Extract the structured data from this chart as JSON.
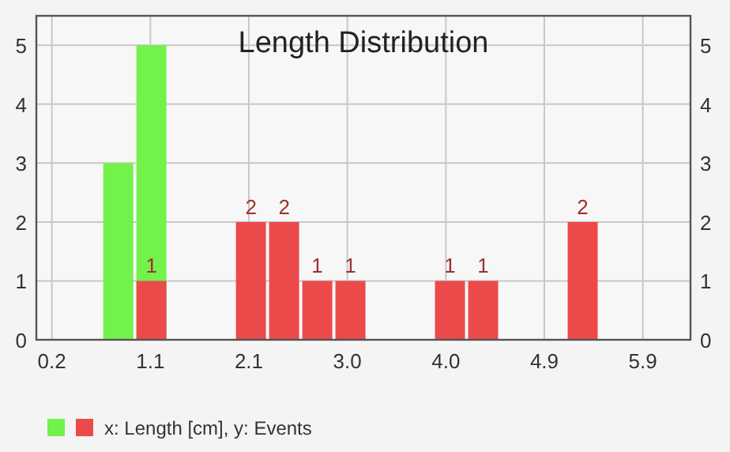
{
  "chart_data": {
    "type": "histogram",
    "title": "Length Distribution",
    "bins": [
      0.68,
      1.0,
      1.32,
      1.64,
      1.96,
      2.28,
      2.6,
      2.92,
      3.24,
      3.56,
      3.88,
      4.2,
      4.52,
      4.84,
      5.16,
      5.48
    ],
    "series": [
      {
        "color": "#72f24a",
        "values": [
          3,
          5,
          0,
          0,
          0,
          0,
          0,
          0,
          0,
          0,
          0,
          0,
          0,
          0,
          0
        ]
      },
      {
        "name": "x: Length [cm], y: Events",
        "color": "#ec4a4a",
        "values": [
          0,
          1,
          0,
          0,
          2,
          2,
          1,
          1,
          0,
          0,
          1,
          1,
          0,
          0,
          2
        ],
        "value_labels": [
          null,
          "1",
          null,
          null,
          "2",
          "2",
          "1",
          "1",
          null,
          null,
          "1",
          "1",
          null,
          null,
          "2"
        ]
      }
    ],
    "xlim": [
      0.05,
      6.36
    ],
    "xticks": [
      0.2,
      {
        "value": 1.15,
        "label": "1.1"
      },
      2.1,
      {
        "value": 3.05,
        "label": "3.0"
      },
      {
        "value": 4.0,
        "label": "4.0"
      },
      {
        "value": 4.95,
        "label": "4.9"
      },
      5.9
    ],
    "ylim": [
      0,
      5.5
    ],
    "yticks": [
      0,
      1,
      2,
      3,
      4,
      5
    ],
    "y2lim": [
      0,
      5.5
    ],
    "y2ticks": [
      0,
      1,
      2,
      3,
      4,
      5
    ],
    "grid": true,
    "legend": "bottom"
  }
}
